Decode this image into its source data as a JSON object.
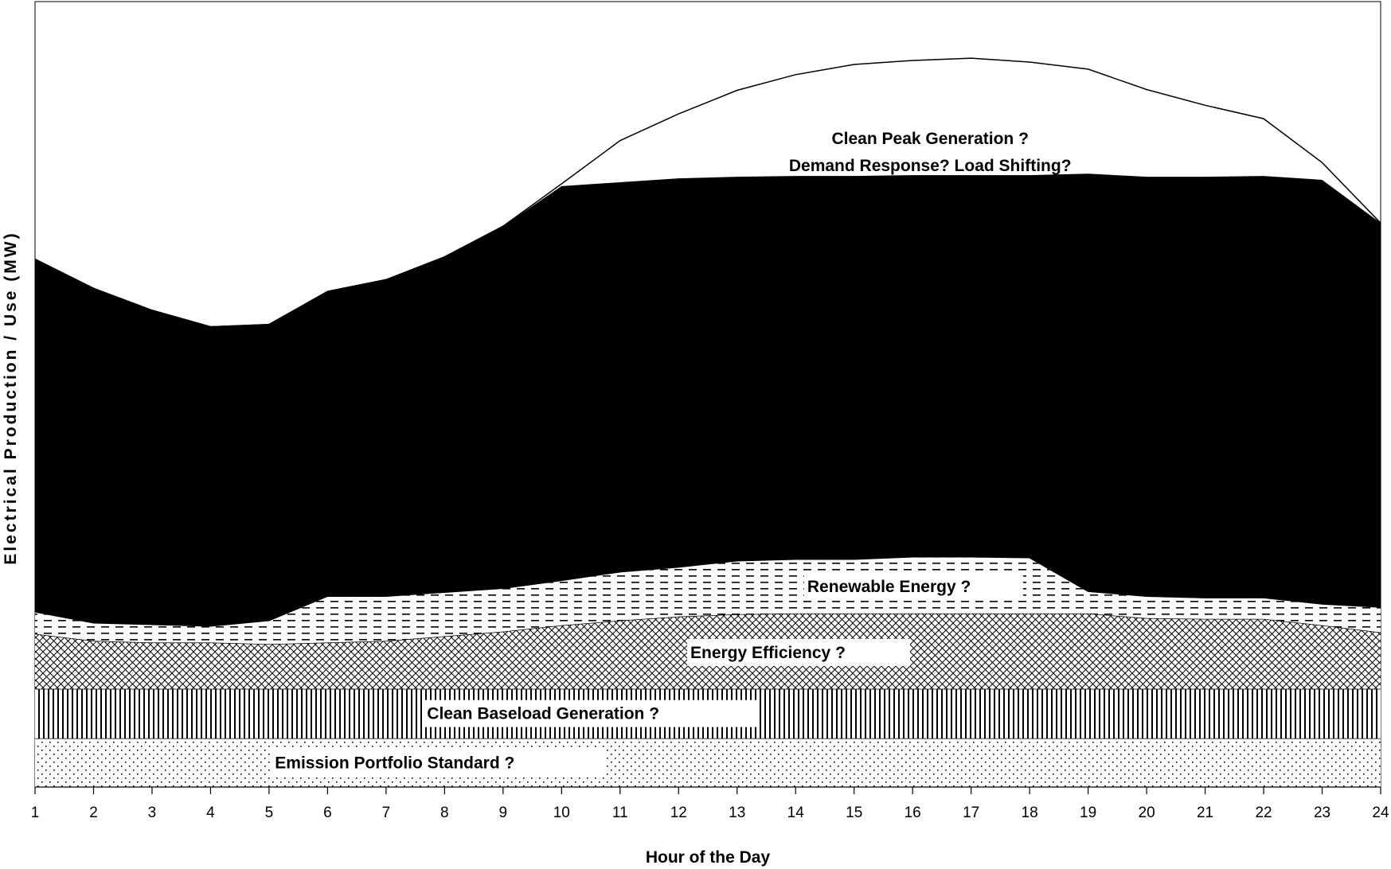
{
  "chart_data": {
    "type": "area",
    "title": "",
    "xlabel": "Hour of the Day",
    "ylabel": "Electrical Production / Use (MW)",
    "x": [
      1,
      2,
      3,
      4,
      5,
      6,
      7,
      8,
      9,
      10,
      11,
      12,
      13,
      14,
      15,
      16,
      17,
      18,
      19,
      20,
      21,
      22,
      23,
      24
    ],
    "ylim": [
      0,
      100
    ],
    "grid": false,
    "legend": "none",
    "series": [
      {
        "name": "Emission Portfolio Standard ?",
        "pattern": "dots",
        "values": [
          6.2,
          6.2,
          6.2,
          6.2,
          6.2,
          6.2,
          6.2,
          6.2,
          6.2,
          6.2,
          6.2,
          6.2,
          6.2,
          6.2,
          6.2,
          6.2,
          6.2,
          6.2,
          6.2,
          6.2,
          6.2,
          6.2,
          6.2,
          6.2
        ]
      },
      {
        "name": "Clean Baseload Generation ?",
        "pattern": "vertical-lines",
        "values": [
          6.3,
          6.3,
          6.3,
          6.3,
          6.3,
          6.3,
          6.3,
          6.3,
          6.3,
          6.3,
          6.3,
          6.3,
          6.3,
          6.3,
          6.3,
          6.3,
          6.3,
          6.3,
          6.3,
          6.3,
          6.3,
          6.3,
          6.3,
          6.3
        ]
      },
      {
        "name": "Energy Efficiency ?",
        "pattern": "crosshatch",
        "values": [
          7.0,
          6.1,
          5.9,
          5.9,
          5.7,
          5.9,
          6.1,
          6.7,
          7.3,
          8.1,
          8.7,
          9.2,
          9.5,
          9.6,
          9.6,
          9.6,
          9.6,
          9.6,
          9.6,
          9.0,
          8.9,
          8.9,
          8.1,
          7.2
        ]
      },
      {
        "name": "Renewable Energy ?",
        "pattern": "dashes",
        "values": [
          2.8,
          2.3,
          2.3,
          2.1,
          3.0,
          5.9,
          5.7,
          5.6,
          5.5,
          5.7,
          6.2,
          6.3,
          6.8,
          6.9,
          6.9,
          7.2,
          7.2,
          7.1,
          2.8,
          2.8,
          2.7,
          2.7,
          2.7,
          3.2
        ]
      },
      {
        "name": "",
        "pattern": "solid",
        "values": [
          44.9,
          42.6,
          40.0,
          38.1,
          37.7,
          38.8,
          40.3,
          42.7,
          46.1,
          50.2,
          49.6,
          49.5,
          48.9,
          48.8,
          48.8,
          48.6,
          48.6,
          48.7,
          53.2,
          53.4,
          53.6,
          53.7,
          54.0,
          48.9
        ]
      },
      {
        "name": "",
        "pattern": "white",
        "values": [
          0,
          0,
          0,
          0,
          0,
          0,
          0,
          0,
          0,
          0.3,
          5.3,
          8.2,
          11.0,
          12.9,
          14.2,
          14.6,
          14.9,
          14.4,
          13.3,
          11.1,
          9.1,
          7.3,
          2.2,
          0
        ]
      }
    ],
    "annotations": [
      {
        "series": 5,
        "text": "Clean Peak Generation ?"
      },
      {
        "series": 5,
        "text": "Demand Response?  Load Shifting?"
      }
    ]
  }
}
